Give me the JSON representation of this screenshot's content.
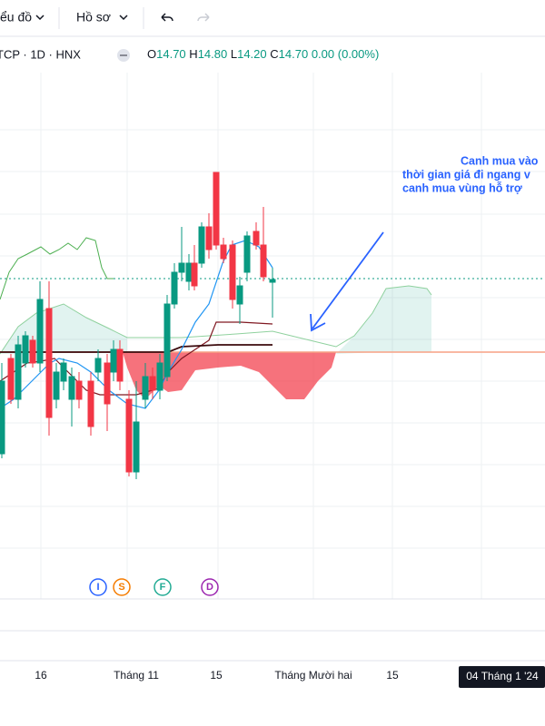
{
  "toolbar": {
    "chart_menu": "ểu đồ",
    "profile_menu": "Hồ sơ"
  },
  "legend": {
    "symbol": "TCP · 1D · HNX",
    "ohlc": [
      {
        "label": "O",
        "value": "14.70"
      },
      {
        "label": "H",
        "value": "14.80"
      },
      {
        "label": "L",
        "value": "14.20"
      },
      {
        "label": "C",
        "value": "14.70"
      }
    ],
    "change": "0.00",
    "change_percent": "(0.00%)"
  },
  "annotation": {
    "lines": [
      "Canh mua vào",
      "thời gian giá đi ngang v",
      "canh mua vùng hỗ trợ"
    ]
  },
  "events": [
    "I",
    "S",
    "F",
    "D"
  ],
  "time_axis": {
    "labels": [
      "16",
      "Tháng 11",
      "15",
      "Tháng Mười hai",
      "15"
    ],
    "crosshair": "04 Tháng 1 '24"
  }
}
